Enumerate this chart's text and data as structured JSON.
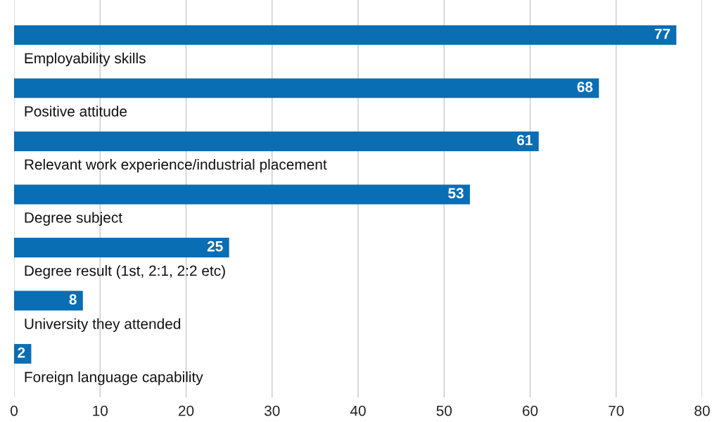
{
  "chart_data": {
    "type": "bar",
    "orientation": "horizontal",
    "categories": [
      "Employability skills",
      "Positive attitude",
      "Relevant work experience/industrial placement",
      "Degree subject",
      "Degree result (1st, 2:1, 2:2 etc)",
      "University they attended",
      "Foreign language capability"
    ],
    "values": [
      77,
      68,
      61,
      53,
      25,
      8,
      2
    ],
    "color": "#0a6eb4",
    "xlim": [
      0,
      80
    ],
    "xticks": [
      0,
      10,
      20,
      30,
      40,
      50,
      60,
      70,
      80
    ],
    "grid": "x",
    "data_labels": true
  }
}
